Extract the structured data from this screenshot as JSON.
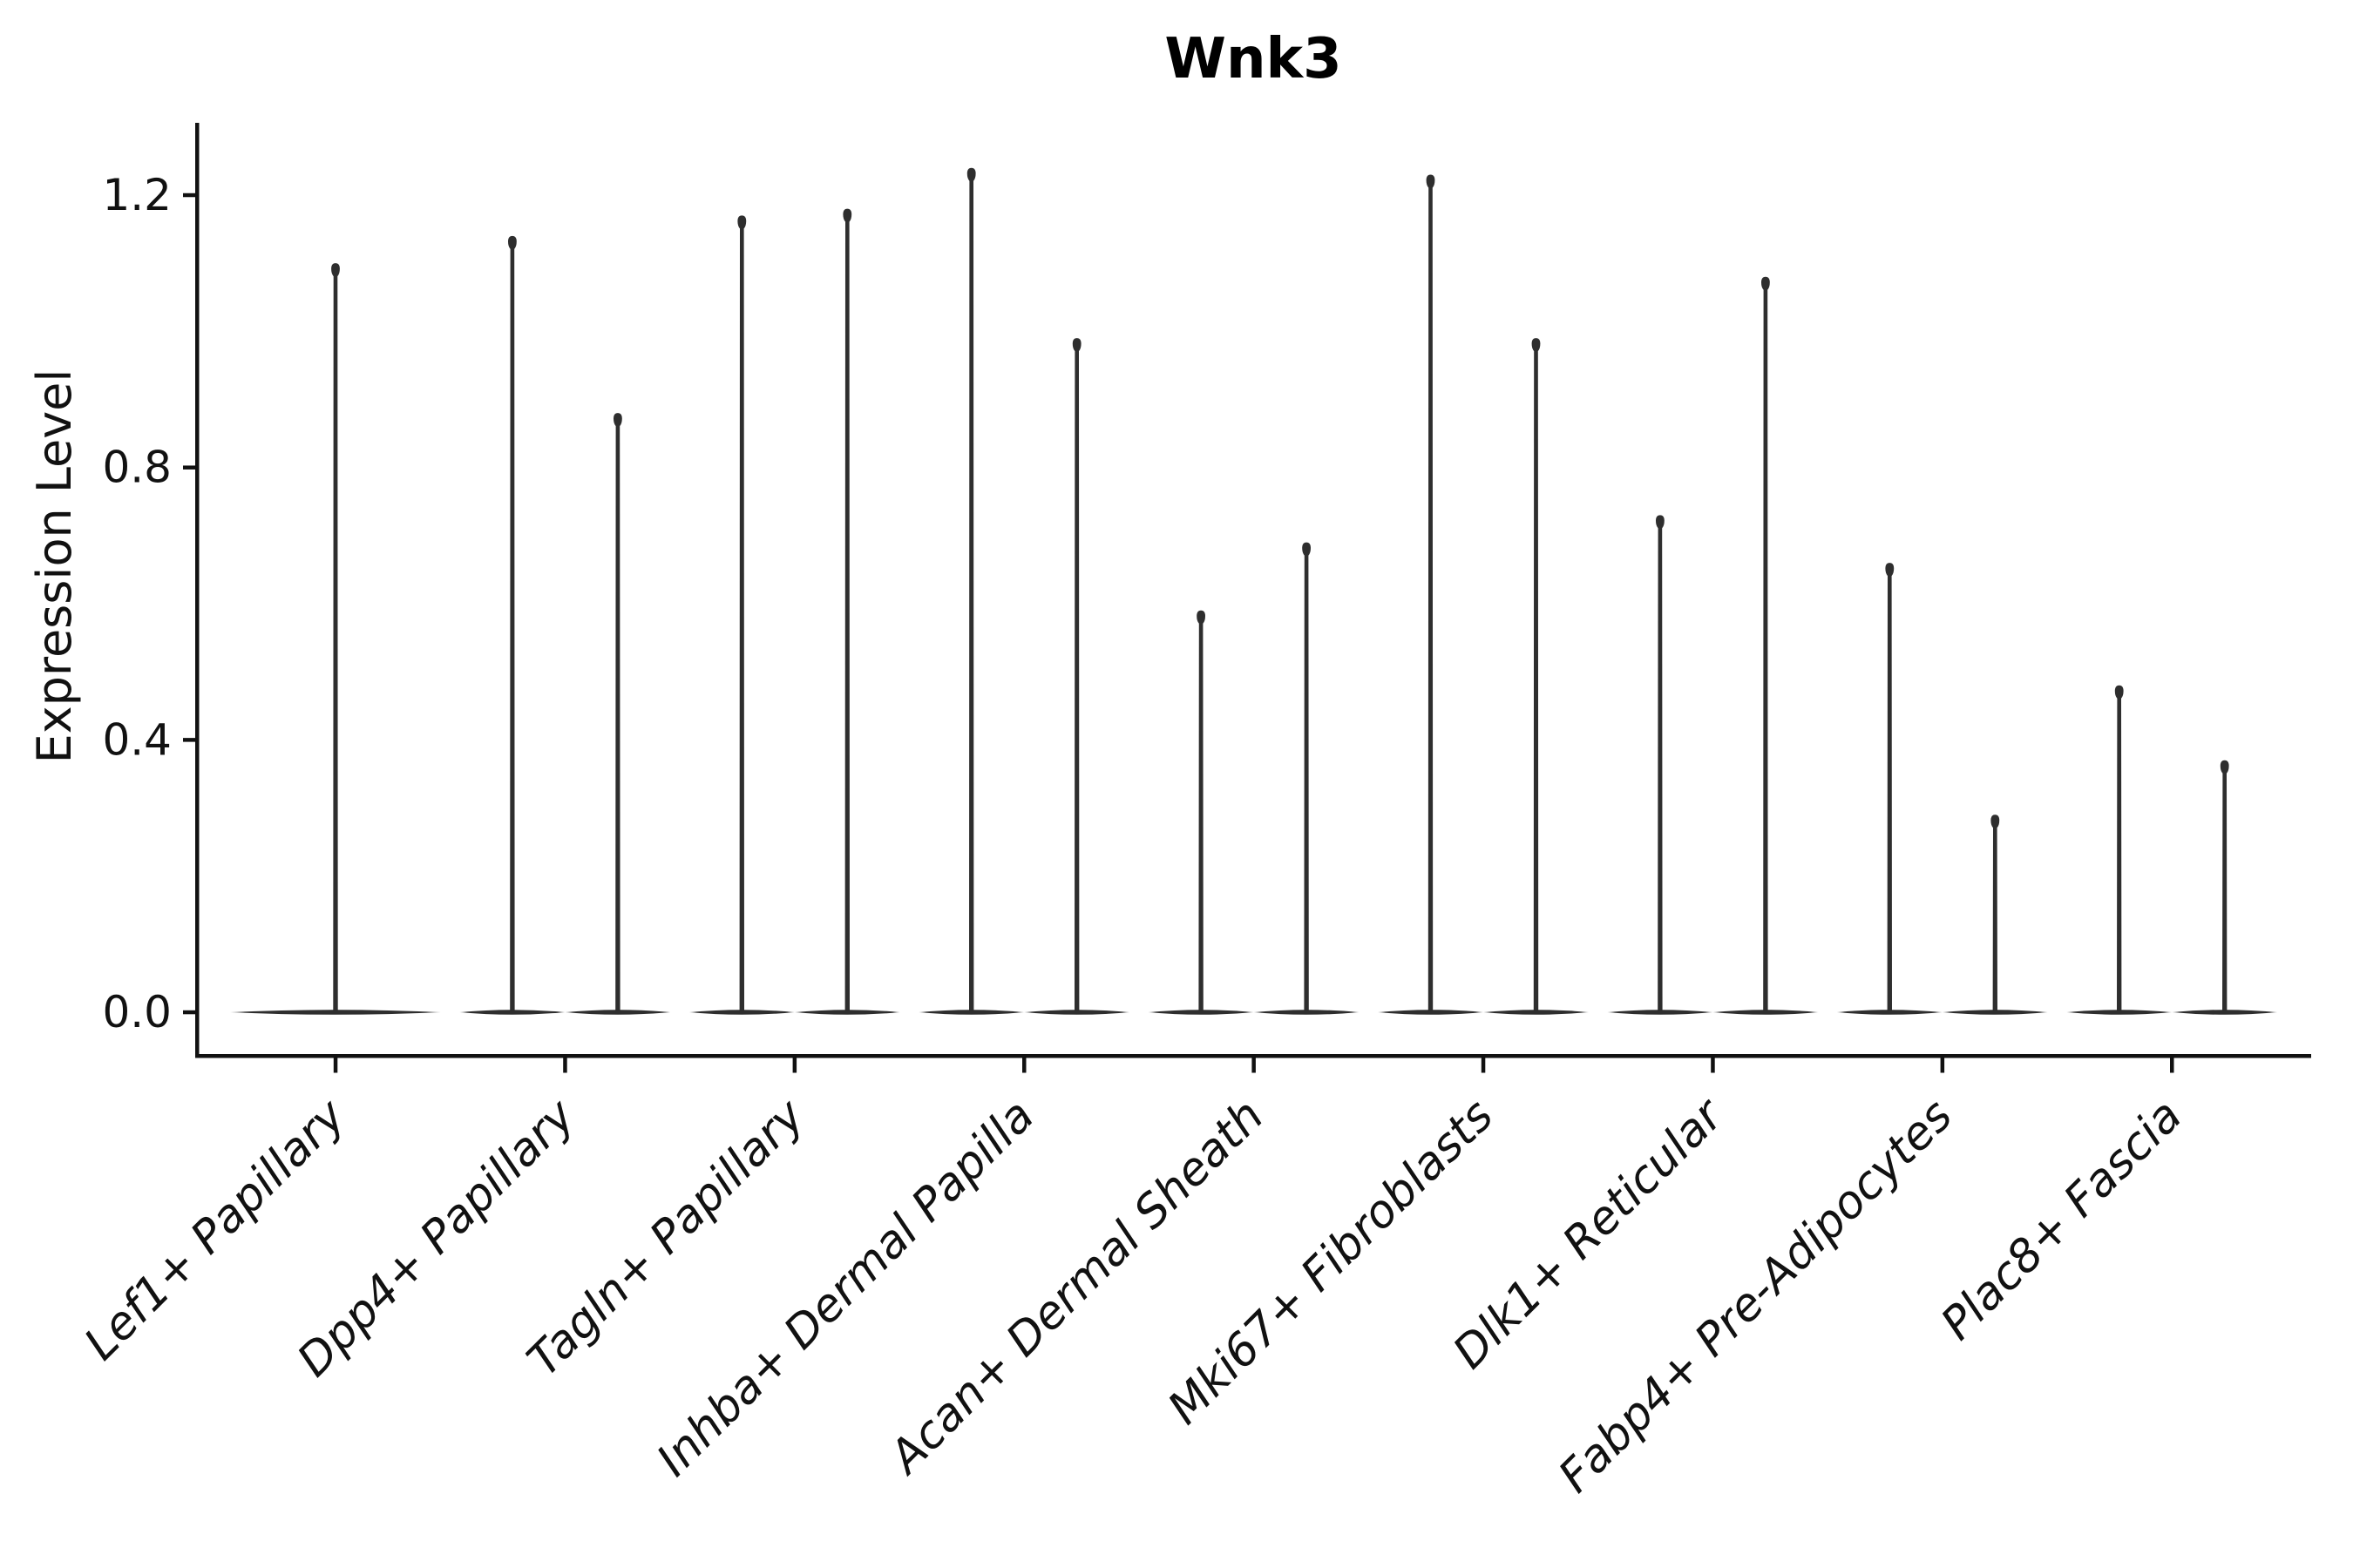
{
  "chart_data": {
    "type": "violin",
    "title": "Wnk3",
    "ylabel": "Expression Level",
    "xlabel": "",
    "yticks": [
      "0.0",
      "0.4",
      "0.8",
      "1.2"
    ],
    "ytick_values": [
      0.0,
      0.4,
      0.8,
      1.2
    ],
    "ylim": [
      -0.06,
      1.31
    ],
    "grid": false,
    "legend": false,
    "baseline_value": 0.0,
    "categories": [
      "Lef1+ Papillary",
      "Dpp4+ Papillary",
      "Tagln+ Papillary",
      "Inhba+ Dermal Papilla",
      "Acan+ Dermal Sheath",
      "Mki67+ Fibroblasts",
      "Dlk1+ Reticular",
      "Fabp4+ Pre-Adipocytes",
      "Plac8+ Fascia"
    ],
    "groups": [
      {
        "label": "Lef1+ Papillary",
        "peaks": [
          1.1
        ]
      },
      {
        "label": "Dpp4+ Papillary",
        "peaks": [
          1.14,
          0.88
        ]
      },
      {
        "label": "Tagln+ Papillary",
        "peaks": [
          1.17,
          1.18
        ]
      },
      {
        "label": "Inhba+ Dermal Papilla",
        "peaks": [
          1.24,
          0.99
        ]
      },
      {
        "label": "Acan+ Dermal Sheath",
        "peaks": [
          0.59,
          0.69
        ]
      },
      {
        "label": "Mki67+ Fibroblasts",
        "peaks": [
          1.23,
          0.99
        ]
      },
      {
        "label": "Dlk1+ Reticular",
        "peaks": [
          0.73,
          1.08
        ]
      },
      {
        "label": "Fabp4+ Pre-Adipocytes",
        "peaks": [
          0.66,
          0.29
        ]
      },
      {
        "label": "Plac8+ Fascia",
        "peaks": [
          0.48,
          0.37
        ]
      }
    ],
    "colors": {
      "violin": "#2e2e2e",
      "axis": "#111111",
      "text": "#111111",
      "background": "#ffffff"
    }
  }
}
